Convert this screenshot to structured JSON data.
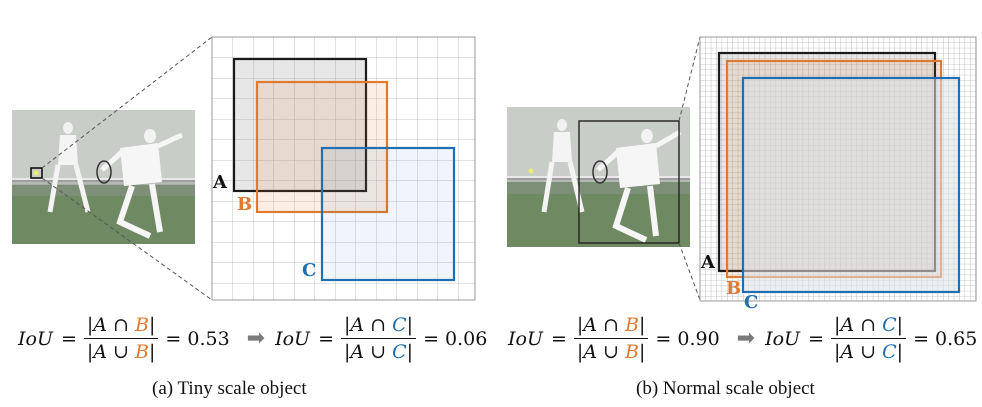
{
  "panel_a": {
    "box_labels": {
      "a": "A",
      "b": "B",
      "c": "C"
    },
    "formula1": {
      "prefix": "IoU",
      "eq": "=",
      "num_a": "|A ∩ ",
      "num_b": "B",
      "num_end": "|",
      "den_a": "|A ∪ ",
      "den_b": "B",
      "den_end": "|",
      "value": "= 0.53"
    },
    "formula2": {
      "prefix": "IoU",
      "eq": "=",
      "num_a": "|A ∩ ",
      "num_c": "C",
      "num_end": "|",
      "den_a": "|A ∪ ",
      "den_c": "C",
      "den_end": "|",
      "value": "= 0.06"
    },
    "caption": "(a)  Tiny scale object"
  },
  "panel_b": {
    "box_labels": {
      "a": "A",
      "b": "B",
      "c": "C"
    },
    "formula1": {
      "prefix": "IoU",
      "eq": "=",
      "num_a": "|A ∩ ",
      "num_b": "B",
      "num_end": "|",
      "den_a": "|A ∪ ",
      "den_b": "B",
      "den_end": "|",
      "value": "= 0.90"
    },
    "formula2": {
      "prefix": "IoU",
      "eq": "=",
      "num_a": "|A ∩ ",
      "num_c": "C",
      "num_end": "|",
      "den_a": "|A ∪ ",
      "den_c": "C",
      "den_end": "|",
      "value": "= 0.65"
    },
    "caption": "(b)  Normal scale object"
  },
  "colors": {
    "box_a": "#1a1a1a",
    "box_b": "#e07a2e",
    "box_c": "#1f6fb2",
    "grid": "#b5b5b5",
    "arrow": "#7a7a7a"
  },
  "icons": {
    "arrow": "arrow-right-icon"
  }
}
